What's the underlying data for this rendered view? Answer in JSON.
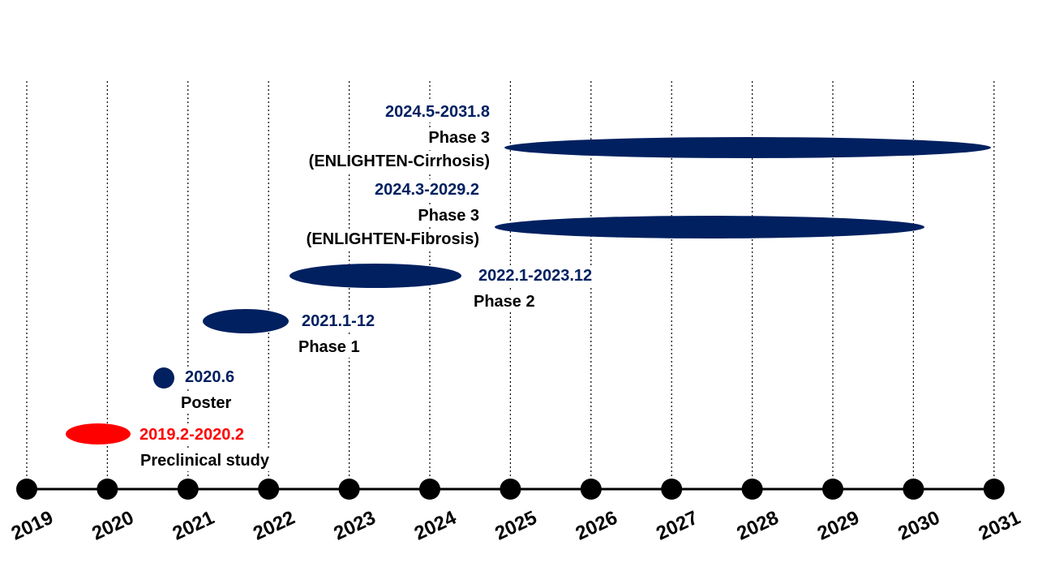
{
  "years": [
    "2019",
    "2020",
    "2021",
    "2022",
    "2023",
    "2024",
    "2025",
    "2026",
    "2027",
    "2028",
    "2029",
    "2030",
    "2031"
  ],
  "events": [
    {
      "date": "2019.2-2020.2",
      "label": "Preclinical study"
    },
    {
      "date": "2020.6",
      "label": "Poster"
    },
    {
      "date": "2021.1-12",
      "label": "Phase 1"
    },
    {
      "date": "2022.1-2023.12",
      "label": "Phase 2"
    },
    {
      "date": "2024.3-2029.2",
      "label": "Phase 3",
      "sublabel": "(ENLIGHTEN-Fibrosis)"
    },
    {
      "date": "2024.5-2031.8",
      "label": "Phase 3",
      "sublabel": "(ENLIGHTEN-Cirrhosis)"
    }
  ]
}
